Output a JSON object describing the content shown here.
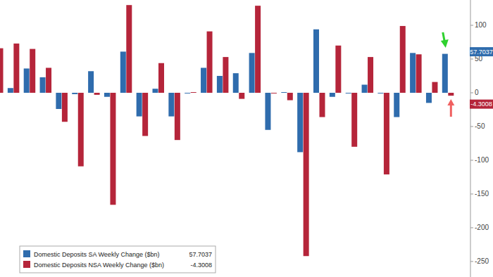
{
  "chart_data": {
    "type": "bar",
    "categories": [
      null,
      null,
      null,
      null,
      null,
      null,
      null,
      null,
      null,
      null,
      null,
      null,
      null,
      null,
      null,
      null,
      null,
      null,
      null,
      null,
      null,
      null,
      null,
      null,
      null,
      null,
      null,
      null,
      null
    ],
    "series": [
      {
        "name": "Domestic Deposits SA Weekly Change ($bn)",
        "color": "#2f6cad",
        "values": [
          null,
          7,
          36,
          23,
          -24,
          -2,
          32,
          -6,
          61,
          -35,
          6,
          -35,
          -1,
          37,
          25,
          29,
          59,
          -55,
          1,
          -88,
          94,
          -6,
          -1,
          12,
          -1,
          -36,
          59,
          -15,
          57.7037
        ]
      },
      {
        "name": "Domestic Deposits NSA Weekly Change ($bn)",
        "color": "#b5253a",
        "values": [
          66,
          73,
          65,
          37,
          -43,
          -109,
          -3,
          -166,
          130,
          -64,
          44,
          -70,
          1,
          91,
          53,
          -9,
          129,
          -1,
          -11,
          -242,
          -36,
          70,
          -80,
          53,
          -121,
          99,
          57,
          16,
          -4.3008
        ]
      }
    ],
    "ylim": [
      -273,
      137.5
    ],
    "yticks": [
      -250,
      -200,
      -150,
      -100,
      -50,
      0,
      50,
      100
    ],
    "grid": false,
    "legend": "lower left",
    "tick_labels": "y"
  }
}
